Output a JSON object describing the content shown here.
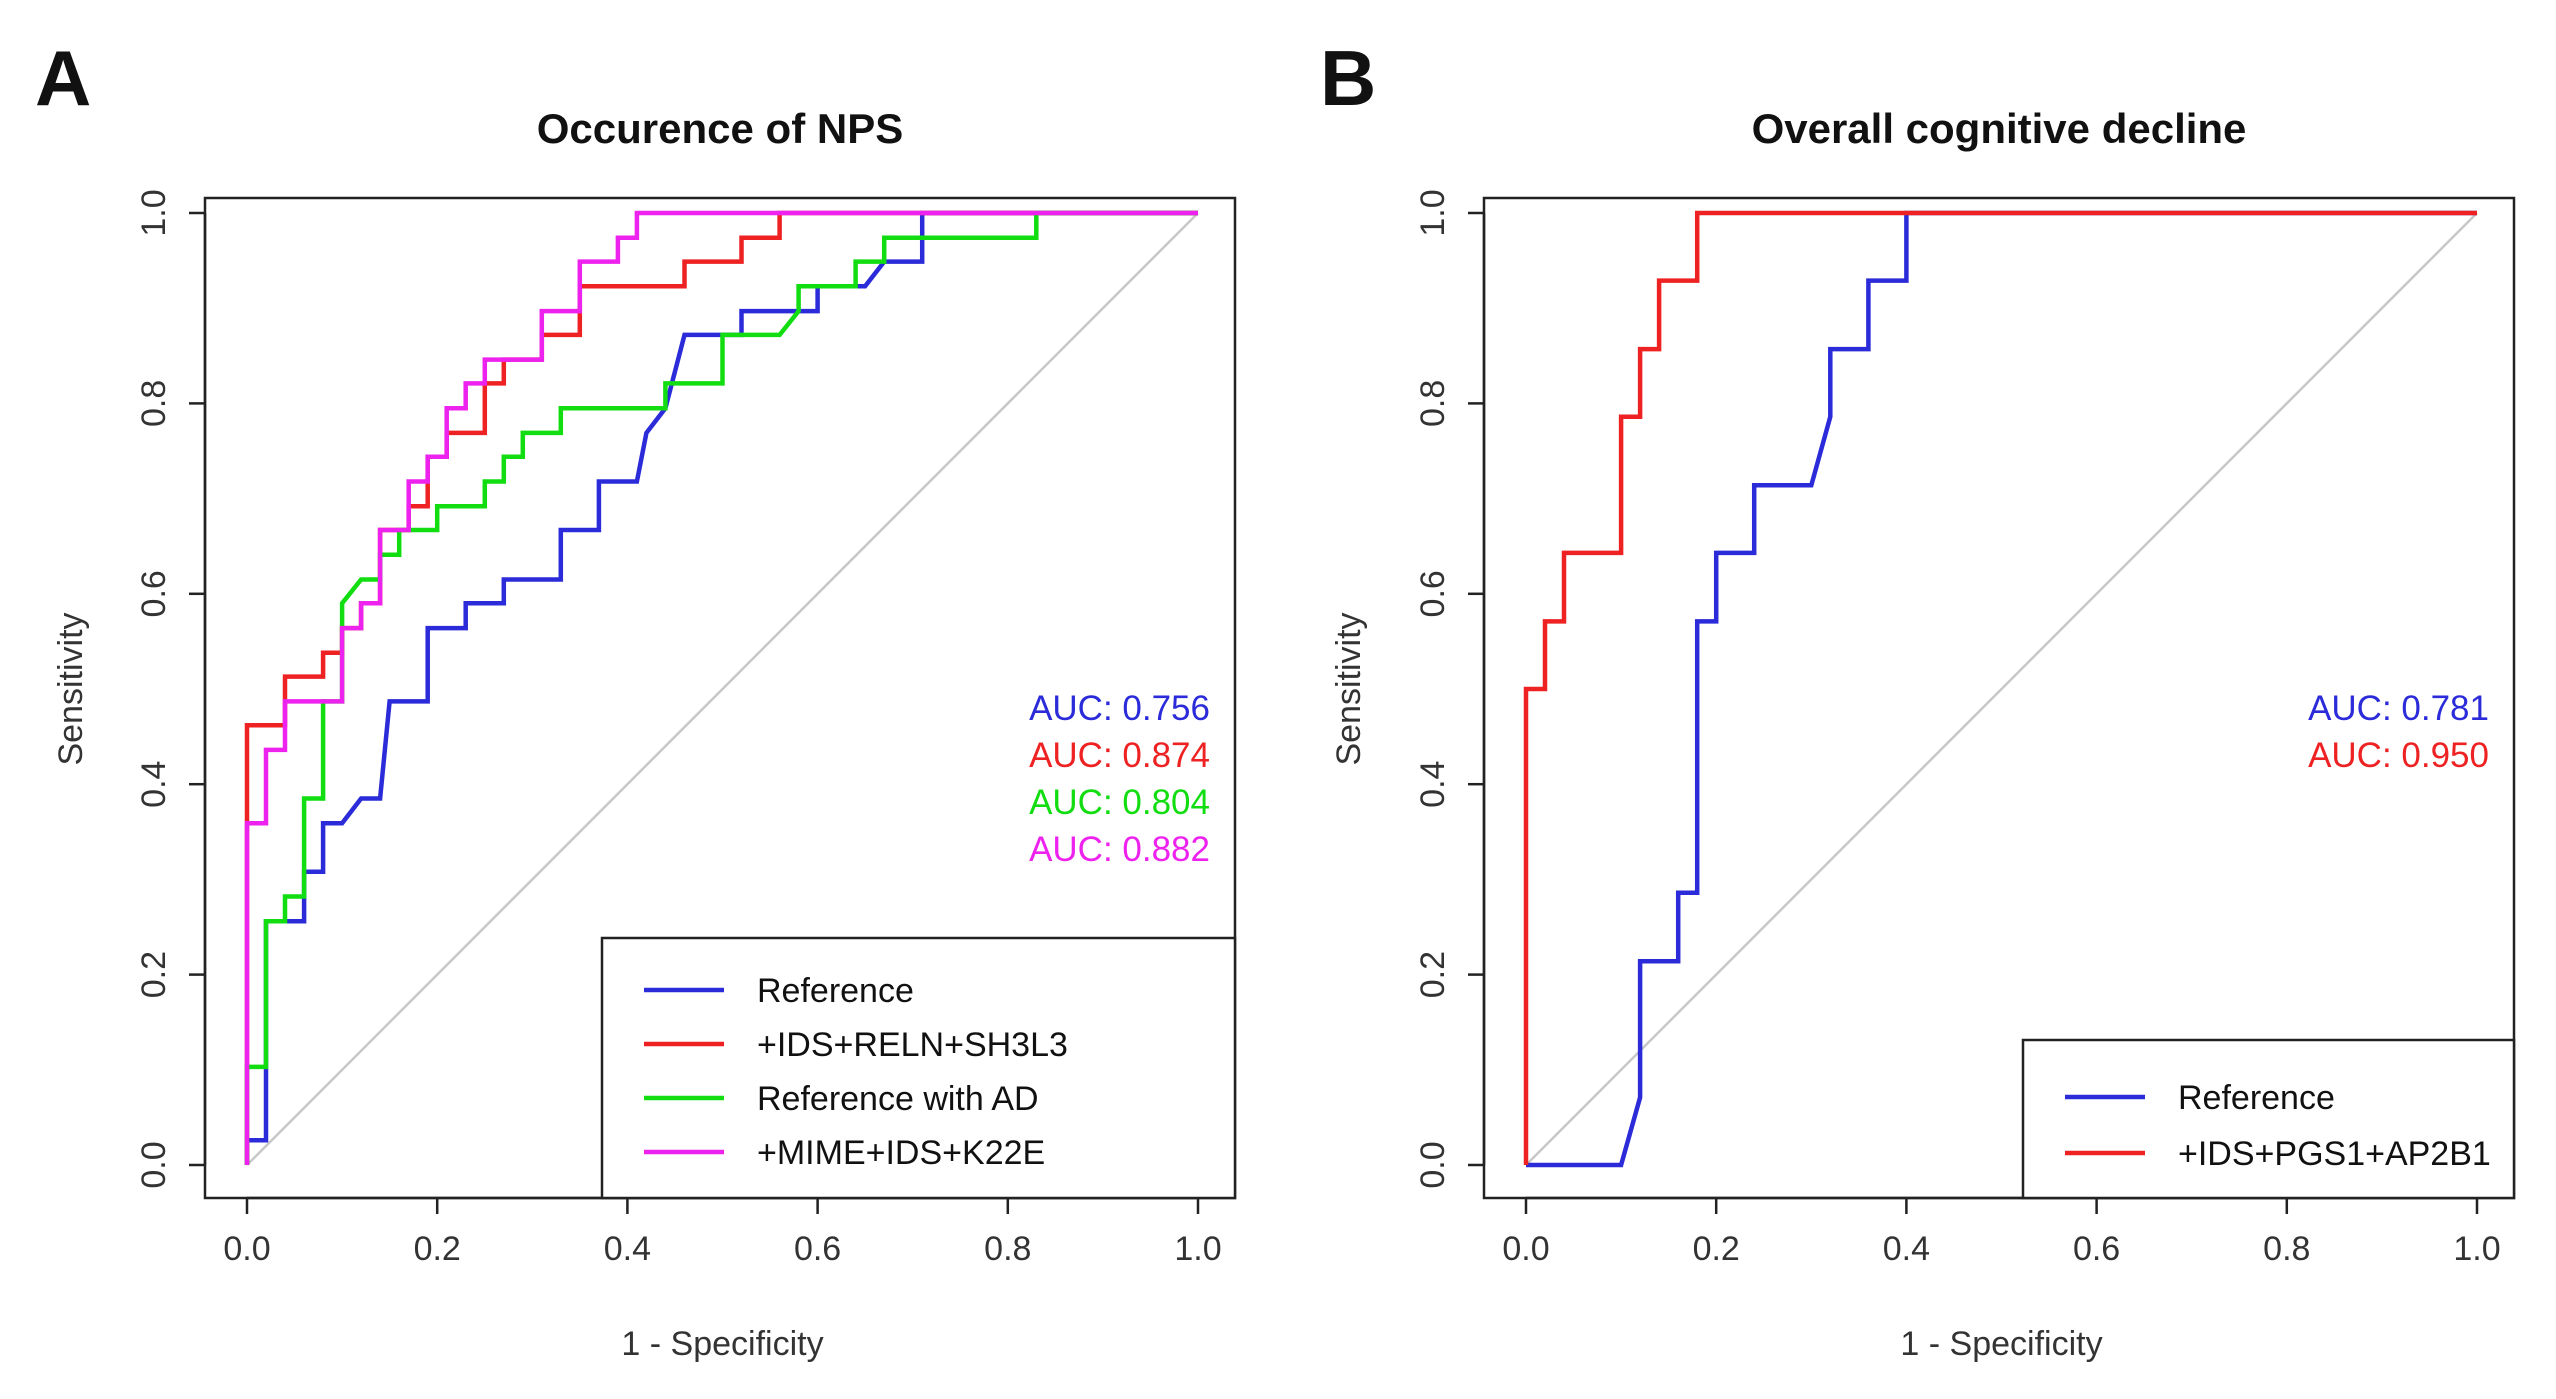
{
  "chart_data": [
    {
      "panel_label": "A",
      "type": "line",
      "title": "Occurence of NPS",
      "xlabel": "1 - Specificity",
      "ylabel": "Sensitivity",
      "xlim": [
        0,
        1
      ],
      "ylim": [
        0,
        1
      ],
      "x_ticks": [
        "0.0",
        "0.2",
        "0.4",
        "0.6",
        "0.8",
        "1.0"
      ],
      "y_ticks": [
        "0.0",
        "0.2",
        "0.4",
        "0.6",
        "0.8",
        "1.0"
      ],
      "diagonal_color": "#c8c8c8",
      "legend_position": "bottom-right",
      "auc_position": "right-middle",
      "series": [
        {
          "name": "Reference",
          "color": "#2b2bd9",
          "auc_label": "AUC: 0.756",
          "points": [
            [
              0,
              0
            ],
            [
              0,
              0.026
            ],
            [
              0.02,
              0.026
            ],
            [
              0.02,
              0.256
            ],
            [
              0.04,
              0.256
            ],
            [
              0.04,
              0.256
            ],
            [
              0.06,
              0.256
            ],
            [
              0.06,
              0.308
            ],
            [
              0.08,
              0.308
            ],
            [
              0.08,
              0.359
            ],
            [
              0.1,
              0.359
            ],
            [
              0.12,
              0.385
            ],
            [
              0.14,
              0.385
            ],
            [
              0.15,
              0.487
            ],
            [
              0.19,
              0.487
            ],
            [
              0.19,
              0.564
            ],
            [
              0.23,
              0.564
            ],
            [
              0.23,
              0.59
            ],
            [
              0.27,
              0.59
            ],
            [
              0.27,
              0.615
            ],
            [
              0.33,
              0.615
            ],
            [
              0.33,
              0.667
            ],
            [
              0.37,
              0.667
            ],
            [
              0.37,
              0.718
            ],
            [
              0.41,
              0.718
            ],
            [
              0.42,
              0.769
            ],
            [
              0.44,
              0.795
            ],
            [
              0.46,
              0.872
            ],
            [
              0.52,
              0.872
            ],
            [
              0.52,
              0.897
            ],
            [
              0.6,
              0.897
            ],
            [
              0.6,
              0.923
            ],
            [
              0.65,
              0.923
            ],
            [
              0.67,
              0.949
            ],
            [
              0.71,
              0.949
            ],
            [
              0.71,
              1
            ],
            [
              0.84,
              1
            ],
            [
              1,
              1
            ]
          ]
        },
        {
          "name": "+IDS+RELN+SH3L3",
          "color": "#ee2222",
          "auc_label": "AUC: 0.874",
          "points": [
            [
              0,
              0
            ],
            [
              0,
              0.462
            ],
            [
              0.04,
              0.462
            ],
            [
              0.04,
              0.513
            ],
            [
              0.08,
              0.513
            ],
            [
              0.08,
              0.538
            ],
            [
              0.1,
              0.538
            ],
            [
              0.1,
              0.564
            ],
            [
              0.12,
              0.564
            ],
            [
              0.12,
              0.59
            ],
            [
              0.14,
              0.59
            ],
            [
              0.14,
              0.667
            ],
            [
              0.17,
              0.667
            ],
            [
              0.17,
              0.692
            ],
            [
              0.19,
              0.692
            ],
            [
              0.19,
              0.744
            ],
            [
              0.21,
              0.744
            ],
            [
              0.21,
              0.769
            ],
            [
              0.25,
              0.769
            ],
            [
              0.25,
              0.821
            ],
            [
              0.27,
              0.821
            ],
            [
              0.27,
              0.846
            ],
            [
              0.31,
              0.846
            ],
            [
              0.31,
              0.872
            ],
            [
              0.35,
              0.872
            ],
            [
              0.35,
              0.923
            ],
            [
              0.46,
              0.923
            ],
            [
              0.46,
              0.949
            ],
            [
              0.52,
              0.949
            ],
            [
              0.52,
              0.974
            ],
            [
              0.56,
              0.974
            ],
            [
              0.56,
              1
            ],
            [
              1,
              1
            ]
          ]
        },
        {
          "name": "Reference with AD",
          "color": "#11dd11",
          "auc_label": "AUC: 0.804",
          "points": [
            [
              0,
              0
            ],
            [
              0,
              0.103
            ],
            [
              0.02,
              0.103
            ],
            [
              0.02,
              0.256
            ],
            [
              0.04,
              0.256
            ],
            [
              0.04,
              0.282
            ],
            [
              0.06,
              0.282
            ],
            [
              0.06,
              0.385
            ],
            [
              0.08,
              0.385
            ],
            [
              0.08,
              0.487
            ],
            [
              0.1,
              0.487
            ],
            [
              0.1,
              0.59
            ],
            [
              0.12,
              0.615
            ],
            [
              0.14,
              0.615
            ],
            [
              0.14,
              0.641
            ],
            [
              0.16,
              0.641
            ],
            [
              0.16,
              0.667
            ],
            [
              0.2,
              0.667
            ],
            [
              0.2,
              0.692
            ],
            [
              0.25,
              0.692
            ],
            [
              0.25,
              0.718
            ],
            [
              0.27,
              0.718
            ],
            [
              0.27,
              0.744
            ],
            [
              0.29,
              0.744
            ],
            [
              0.29,
              0.769
            ],
            [
              0.33,
              0.769
            ],
            [
              0.33,
              0.795
            ],
            [
              0.44,
              0.795
            ],
            [
              0.44,
              0.821
            ],
            [
              0.5,
              0.821
            ],
            [
              0.5,
              0.872
            ],
            [
              0.56,
              0.872
            ],
            [
              0.58,
              0.897
            ],
            [
              0.58,
              0.923
            ],
            [
              0.64,
              0.923
            ],
            [
              0.64,
              0.949
            ],
            [
              0.67,
              0.949
            ],
            [
              0.67,
              0.974
            ],
            [
              0.83,
              0.974
            ],
            [
              0.83,
              1
            ],
            [
              1,
              1
            ]
          ]
        },
        {
          "name": "+MIME+IDS+K22E",
          "color": "#ee22ee",
          "auc_label": "AUC: 0.882",
          "points": [
            [
              0,
              0
            ],
            [
              0,
              0.359
            ],
            [
              0.02,
              0.359
            ],
            [
              0.02,
              0.436
            ],
            [
              0.04,
              0.436
            ],
            [
              0.04,
              0.487
            ],
            [
              0.1,
              0.487
            ],
            [
              0.1,
              0.564
            ],
            [
              0.12,
              0.564
            ],
            [
              0.12,
              0.59
            ],
            [
              0.14,
              0.59
            ],
            [
              0.14,
              0.667
            ],
            [
              0.17,
              0.667
            ],
            [
              0.17,
              0.718
            ],
            [
              0.19,
              0.718
            ],
            [
              0.19,
              0.744
            ],
            [
              0.21,
              0.744
            ],
            [
              0.21,
              0.795
            ],
            [
              0.23,
              0.795
            ],
            [
              0.23,
              0.821
            ],
            [
              0.25,
              0.821
            ],
            [
              0.25,
              0.846
            ],
            [
              0.31,
              0.846
            ],
            [
              0.31,
              0.897
            ],
            [
              0.35,
              0.897
            ],
            [
              0.35,
              0.949
            ],
            [
              0.39,
              0.949
            ],
            [
              0.39,
              0.974
            ],
            [
              0.41,
              0.974
            ],
            [
              0.41,
              1
            ],
            [
              1,
              1
            ]
          ]
        }
      ]
    },
    {
      "panel_label": "B",
      "type": "line",
      "title": "Overall cognitive decline",
      "xlabel": "1 - Specificity",
      "ylabel": "Sensitivity",
      "xlim": [
        0,
        1
      ],
      "ylim": [
        0,
        1
      ],
      "x_ticks": [
        "0.0",
        "0.2",
        "0.4",
        "0.6",
        "0.8",
        "1.0"
      ],
      "y_ticks": [
        "0.0",
        "0.2",
        "0.4",
        "0.6",
        "0.8",
        "1.0"
      ],
      "diagonal_color": "#c8c8c8",
      "legend_position": "bottom-right",
      "auc_position": "right-middle",
      "series": [
        {
          "name": "Reference",
          "color": "#2b2bd9",
          "auc_label": "AUC: 0.781",
          "points": [
            [
              0,
              0
            ],
            [
              0.1,
              0
            ],
            [
              0.12,
              0.071
            ],
            [
              0.12,
              0.214
            ],
            [
              0.16,
              0.214
            ],
            [
              0.16,
              0.286
            ],
            [
              0.18,
              0.286
            ],
            [
              0.18,
              0.571
            ],
            [
              0.2,
              0.571
            ],
            [
              0.2,
              0.643
            ],
            [
              0.24,
              0.643
            ],
            [
              0.24,
              0.714
            ],
            [
              0.3,
              0.714
            ],
            [
              0.32,
              0.786
            ],
            [
              0.32,
              0.857
            ],
            [
              0.36,
              0.857
            ],
            [
              0.36,
              0.929
            ],
            [
              0.4,
              0.929
            ],
            [
              0.4,
              1
            ],
            [
              1,
              1
            ]
          ]
        },
        {
          "name": "+IDS+PGS1+AP2B1",
          "color": "#ee2222",
          "auc_label": "AUC: 0.950",
          "points": [
            [
              0,
              0
            ],
            [
              0,
              0.5
            ],
            [
              0.02,
              0.5
            ],
            [
              0.02,
              0.571
            ],
            [
              0.04,
              0.571
            ],
            [
              0.04,
              0.643
            ],
            [
              0.1,
              0.643
            ],
            [
              0.1,
              0.786
            ],
            [
              0.12,
              0.786
            ],
            [
              0.12,
              0.857
            ],
            [
              0.14,
              0.857
            ],
            [
              0.14,
              0.929
            ],
            [
              0.18,
              0.929
            ],
            [
              0.18,
              1
            ],
            [
              1,
              1
            ]
          ]
        }
      ]
    }
  ]
}
